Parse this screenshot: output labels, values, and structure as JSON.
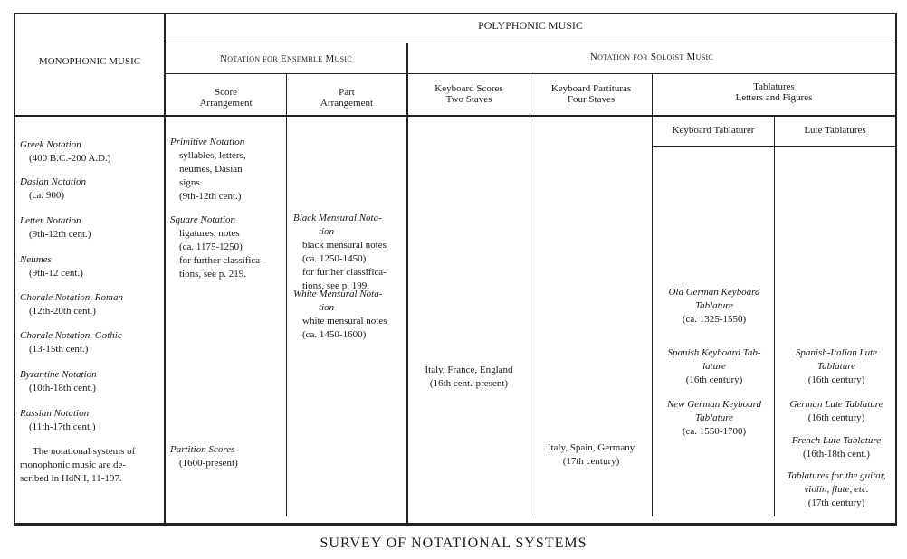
{
  "headers": {
    "monophonic": "MONOPHONIC MUSIC",
    "polyphonic": "POLYPHONIC MUSIC",
    "ensemble": "Notation for Ensemble Music",
    "soloist": "Notation for Soloist Music",
    "score": [
      "Score",
      "Arrangement"
    ],
    "part": [
      "Part",
      "Arrangement"
    ],
    "kbd_scores": [
      "Keyboard Scores",
      "Two Staves"
    ],
    "kbd_partituras": [
      "Keyboard Partituras",
      "Four Staves"
    ],
    "tablatures": [
      "Tablatures",
      "Letters and Figures"
    ],
    "kbd_tablature": "Keyboard Tablaturer",
    "lute_tablatures": "Lute Tablatures"
  },
  "monophonic": [
    {
      "title": "Greek Notation",
      "lines": [
        "(400 B.C.-200 A.D.)"
      ]
    },
    {
      "title": "Dasian Notation",
      "lines": [
        "(ca. 900)"
      ]
    },
    {
      "title": "Letter Notation",
      "lines": [
        "(9th-12th cent.)"
      ]
    },
    {
      "title": "Neumes",
      "lines": [
        "(9th-12 cent.)"
      ]
    },
    {
      "title": "Chorale Notation, Roman",
      "lines": [
        "(12th-20th cent.)"
      ]
    },
    {
      "title": "Chorale Notation, Gothic",
      "lines": [
        "(13-15th cent.)"
      ]
    },
    {
      "title": "Byzantine Notation",
      "lines": [
        "(10th-18th cent.)"
      ]
    },
    {
      "title": "Russian Notation",
      "lines": [
        "(11th-17th cent.)"
      ]
    }
  ],
  "monophonic_note": [
    "The notational systems of",
    "monophonic music are de-",
    "scribed in HdN I, 11-197."
  ],
  "score": [
    {
      "title": "Primitive Notation",
      "lines": [
        "syllables, letters,",
        "neumes, Dasian",
        "signs",
        "(9th-12th cent.)"
      ]
    },
    {
      "title": "Square Notation",
      "lines": [
        "ligatures, notes",
        "(ca. 1175-1250)",
        "for further classifica-",
        "tions, see p. 219."
      ]
    },
    {
      "title": "Partition Scores",
      "lines": [
        "(1600-present)"
      ]
    }
  ],
  "part": [
    {
      "title": "Black Mensural Nota-",
      "title2": "tion",
      "lines": [
        "black mensural notes",
        "(ca. 1250-1450)",
        "for further classifica-",
        "tions, see p. 199."
      ]
    },
    {
      "title": "White Mensural Nota-",
      "title2": "tion",
      "lines": [
        "white mensural notes",
        "(ca. 1450-1600)"
      ]
    }
  ],
  "kbd_scores": [
    "Italy, France, England",
    "(16th cent.-present)"
  ],
  "kbd_partituras": [
    "Italy, Spain, Germany",
    "(17th century)"
  ],
  "kbd_tablature": [
    {
      "title": "Old German Keyboard",
      "title2": "Tablature",
      "lines": [
        "(ca. 1325-1550)"
      ]
    },
    {
      "title": "Spanish Keyboard Tab-",
      "title2": "lature",
      "lines": [
        "(16th century)"
      ]
    },
    {
      "title": "New German Keyboard",
      "title2": "Tablature",
      "lines": [
        "(ca. 1550-1700)"
      ]
    }
  ],
  "lute": [
    {
      "title": "Spanish-Italian Lute",
      "title2": "Tablature",
      "lines": [
        "(16th century)"
      ]
    },
    {
      "title": "German Lute Tablature",
      "lines": [
        "(16th century)"
      ]
    },
    {
      "title": "French Lute Tablature",
      "lines": [
        "(16th-18th cent.)"
      ]
    },
    {
      "title": "Tablatures for the guitar,",
      "title2": "violin, flute, etc.",
      "lines": [
        "(17th century)"
      ]
    }
  ],
  "caption": "SURVEY OF NOTATIONAL SYSTEMS"
}
